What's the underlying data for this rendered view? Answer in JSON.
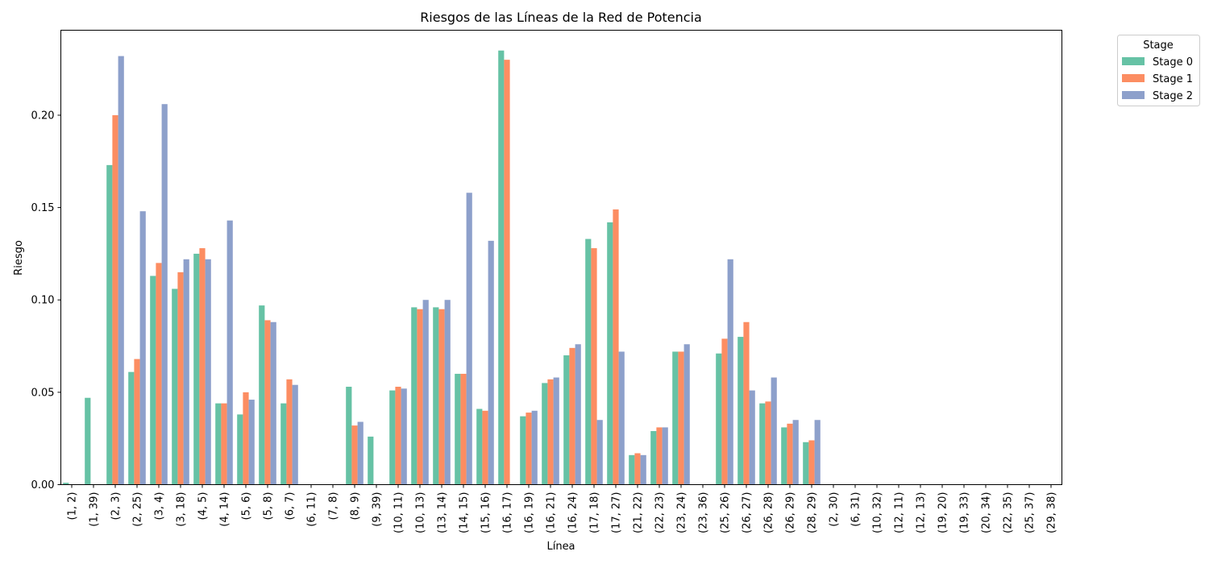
{
  "chart_data": {
    "type": "bar",
    "title": "Riesgos de las Líneas de la Red de Potencia",
    "xlabel": "Línea",
    "ylabel": "Riesgo",
    "ylim": [
      0,
      0.246
    ],
    "yticks": [
      "0.00",
      "0.05",
      "0.10",
      "0.15",
      "0.20"
    ],
    "grid": false,
    "legend": {
      "title": "Stage",
      "placement": "outside-top-right"
    },
    "categories": [
      "(1, 2)",
      "(1, 39)",
      "(2, 3)",
      "(2, 25)",
      "(3, 4)",
      "(3, 18)",
      "(4, 5)",
      "(4, 14)",
      "(5, 6)",
      "(5, 8)",
      "(6, 7)",
      "(6, 11)",
      "(7, 8)",
      "(8, 9)",
      "(9, 39)",
      "(10, 11)",
      "(10, 13)",
      "(13, 14)",
      "(14, 15)",
      "(15, 16)",
      "(16, 17)",
      "(16, 19)",
      "(16, 21)",
      "(16, 24)",
      "(17, 18)",
      "(17, 27)",
      "(21, 22)",
      "(22, 23)",
      "(23, 24)",
      "(23, 36)",
      "(25, 26)",
      "(26, 27)",
      "(26, 28)",
      "(26, 29)",
      "(28, 29)",
      "(2, 30)",
      "(6, 31)",
      "(10, 32)",
      "(12, 11)",
      "(12, 13)",
      "(19, 20)",
      "(19, 33)",
      "(20, 34)",
      "(22, 35)",
      "(25, 37)",
      "(29, 38)"
    ],
    "series": [
      {
        "name": "Stage 0",
        "color": "#66c2a5",
        "values": [
          0.001,
          0.047,
          0.173,
          0.061,
          0.113,
          0.106,
          0.125,
          0.044,
          0.038,
          0.097,
          0.044,
          0,
          0,
          0.053,
          0.026,
          0.051,
          0.096,
          0.096,
          0.06,
          0.041,
          0.235,
          0.037,
          0.055,
          0.07,
          0.133,
          0.142,
          0.016,
          0.029,
          0.072,
          0,
          0.071,
          0.08,
          0.044,
          0.031,
          0.023,
          0,
          0,
          0,
          0,
          0,
          0,
          0,
          0,
          0,
          0,
          0
        ]
      },
      {
        "name": "Stage 1",
        "color": "#fc8d62",
        "values": [
          0,
          0,
          0.2,
          0.068,
          0.12,
          0.115,
          0.128,
          0.044,
          0.05,
          0.089,
          0.057,
          0,
          0,
          0.032,
          0,
          0.053,
          0.095,
          0.095,
          0.06,
          0.04,
          0.23,
          0.039,
          0.057,
          0.074,
          0.128,
          0.149,
          0.017,
          0.031,
          0.072,
          0,
          0.079,
          0.088,
          0.045,
          0.033,
          0.024,
          0,
          0,
          0,
          0,
          0,
          0,
          0,
          0,
          0,
          0,
          0
        ]
      },
      {
        "name": "Stage 2",
        "color": "#8da0cb",
        "values": [
          0,
          0,
          0.232,
          0.148,
          0.206,
          0.122,
          0.122,
          0.143,
          0.046,
          0.088,
          0.054,
          0,
          0,
          0.034,
          0,
          0.052,
          0.1,
          0.1,
          0.158,
          0.132,
          0,
          0.04,
          0.058,
          0.076,
          0.035,
          0.072,
          0.016,
          0.031,
          0.076,
          0,
          0.122,
          0.051,
          0.058,
          0.035,
          0.035,
          0,
          0,
          0,
          0,
          0,
          0,
          0,
          0,
          0,
          0,
          0
        ]
      }
    ]
  }
}
